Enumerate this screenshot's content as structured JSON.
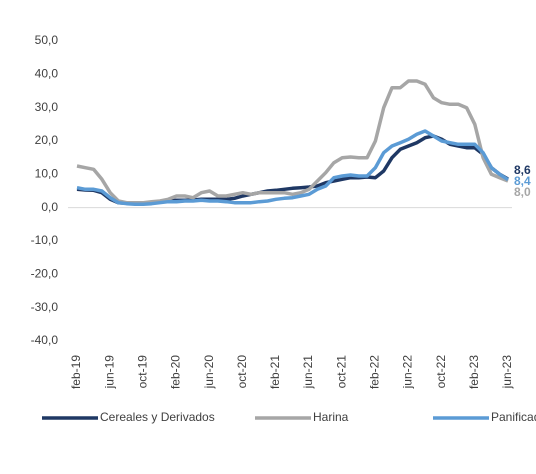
{
  "chart_data": {
    "type": "line",
    "categories": [
      "feb-19",
      null,
      null,
      null,
      "jun-19",
      null,
      null,
      null,
      "oct-19",
      null,
      null,
      null,
      "feb-20",
      null,
      null,
      null,
      "jun-20",
      null,
      null,
      null,
      "oct-20",
      null,
      null,
      null,
      "feb-21",
      null,
      null,
      null,
      "jun-21",
      null,
      null,
      null,
      "oct-21",
      null,
      null,
      null,
      "feb-22",
      null,
      null,
      null,
      "jun-22",
      null,
      null,
      null,
      "oct-22",
      null,
      null,
      null,
      "feb-23",
      null,
      null,
      null,
      "jun-23"
    ],
    "series": [
      {
        "name": "Cereales y Derivados",
        "color": "#1f3864",
        "values": [
          5.5,
          5.3,
          5.2,
          4.5,
          2.5,
          1.5,
          1.3,
          1.3,
          1.5,
          1.5,
          1.8,
          2.0,
          2.2,
          2.2,
          2.3,
          2.5,
          2.5,
          2.5,
          2.5,
          2.8,
          3.5,
          4.0,
          4.5,
          5.0,
          5.2,
          5.5,
          5.8,
          6.0,
          6.2,
          6.5,
          7.5,
          8.0,
          8.5,
          9.0,
          9.0,
          9.2,
          9.0,
          11.0,
          15.0,
          17.5,
          18.5,
          19.5,
          21.0,
          21.5,
          20.5,
          19.0,
          18.5,
          18.0,
          18.0,
          16.0,
          12.0,
          10.0,
          8.6
        ],
        "value_labels": [
          null,
          null,
          null,
          null,
          null,
          null,
          null,
          null,
          null,
          null,
          null,
          null,
          null,
          null,
          null,
          null,
          null,
          null,
          null,
          null,
          null,
          null,
          null,
          null,
          null,
          null,
          null,
          null,
          null,
          null,
          null,
          null,
          null,
          null,
          null,
          null,
          null,
          null,
          null,
          null,
          null,
          null,
          null,
          null,
          null,
          null,
          null,
          null,
          null,
          null,
          null,
          null,
          "8,6"
        ]
      },
      {
        "name": "Harina",
        "color": "#a6a6a6",
        "values": [
          12.5,
          12.0,
          11.5,
          8.5,
          4.5,
          2.0,
          1.5,
          1.5,
          1.5,
          1.8,
          2.0,
          2.5,
          3.5,
          3.5,
          3.0,
          4.5,
          5.0,
          3.5,
          3.5,
          4.0,
          4.5,
          4.0,
          4.5,
          4.5,
          4.5,
          4.5,
          4.0,
          4.5,
          5.5,
          8.0,
          10.5,
          13.5,
          15.0,
          15.2,
          15.0,
          15.0,
          20.0,
          30.0,
          36.0,
          36.0,
          38.0,
          38.0,
          37.0,
          33.0,
          31.5,
          31.0,
          31.0,
          30.0,
          25.0,
          15.0,
          10.0,
          9.0,
          8.0
        ],
        "value_labels": [
          null,
          null,
          null,
          null,
          null,
          null,
          null,
          null,
          null,
          null,
          null,
          null,
          null,
          null,
          null,
          null,
          null,
          null,
          null,
          null,
          null,
          null,
          null,
          null,
          null,
          null,
          null,
          null,
          null,
          null,
          null,
          null,
          null,
          null,
          null,
          null,
          null,
          null,
          null,
          null,
          null,
          null,
          null,
          null,
          null,
          null,
          null,
          null,
          null,
          null,
          null,
          null,
          "8,0"
        ]
      },
      {
        "name": "Panificados",
        "color": "#5b9bd5",
        "values": [
          6.0,
          5.5,
          5.5,
          5.0,
          3.0,
          1.5,
          1.2,
          1.0,
          1.0,
          1.2,
          1.5,
          1.8,
          1.8,
          2.0,
          2.0,
          2.2,
          2.0,
          2.0,
          1.8,
          1.5,
          1.5,
          1.5,
          1.8,
          2.0,
          2.5,
          2.8,
          3.0,
          3.5,
          4.0,
          5.5,
          6.5,
          9.0,
          9.5,
          9.8,
          9.5,
          9.5,
          12.0,
          16.5,
          18.5,
          19.5,
          20.5,
          22.0,
          23.0,
          21.5,
          20.0,
          19.5,
          19.0,
          19.0,
          19.0,
          16.5,
          12.0,
          10.0,
          8.4
        ],
        "value_labels": [
          null,
          null,
          null,
          null,
          null,
          null,
          null,
          null,
          null,
          null,
          null,
          null,
          null,
          null,
          null,
          null,
          null,
          null,
          null,
          null,
          null,
          null,
          null,
          null,
          null,
          null,
          null,
          null,
          null,
          null,
          null,
          null,
          null,
          null,
          null,
          null,
          null,
          null,
          null,
          null,
          null,
          null,
          null,
          null,
          null,
          null,
          null,
          null,
          null,
          null,
          null,
          null,
          "8,4"
        ]
      }
    ],
    "ylim": [
      -40,
      50
    ],
    "yticks": [
      {
        "value": -40,
        "label": "-40,0"
      },
      {
        "value": -30,
        "label": "-30,0"
      },
      {
        "value": -20,
        "label": "-20,0"
      },
      {
        "value": -10,
        "label": "-10,0"
      },
      {
        "value": 0,
        "label": "0,0"
      },
      {
        "value": 10,
        "label": "10,0"
      },
      {
        "value": 20,
        "label": "20,0"
      },
      {
        "value": 30,
        "label": "30,0"
      },
      {
        "value": 40,
        "label": "40,0"
      },
      {
        "value": 50,
        "label": "50,0"
      }
    ],
    "grid": false,
    "legend": "bottom"
  }
}
